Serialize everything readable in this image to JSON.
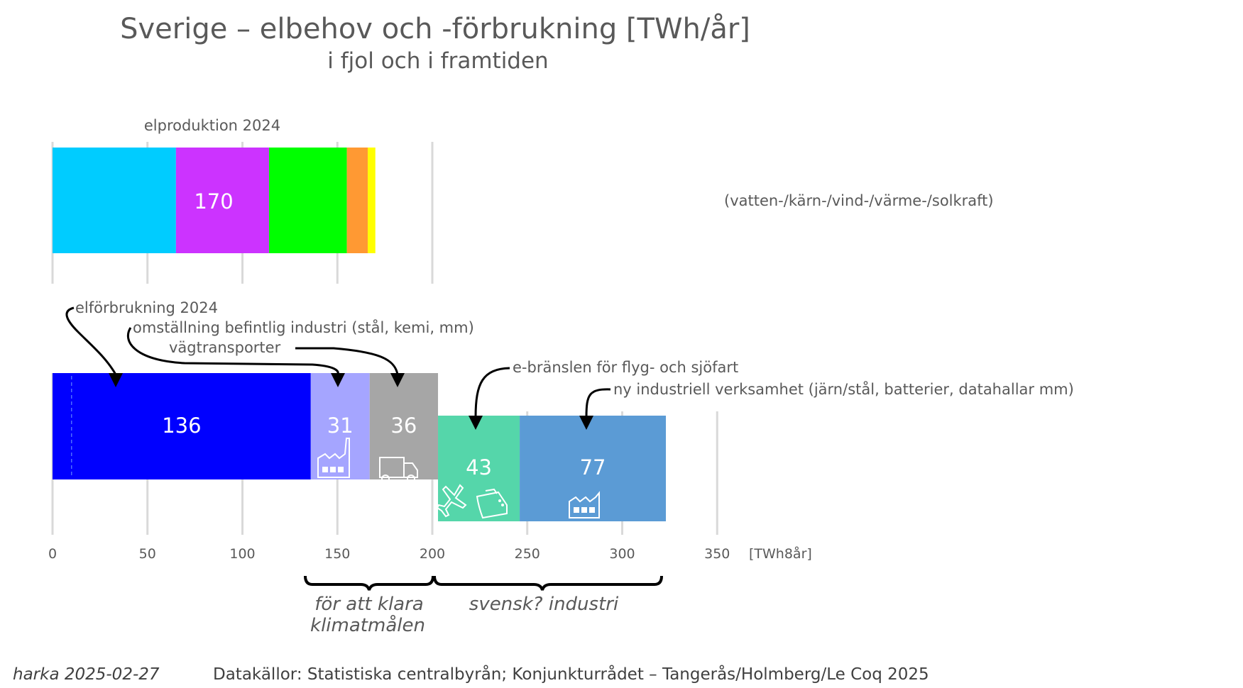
{
  "chart_data": {
    "type": "bar",
    "orientation": "horizontal-stacked",
    "title": "Sverige – elbehov och -förbrukning [TWh/år]",
    "subtitle": "i fjol och i framtiden",
    "xlabel_unit": "[TWh8år]",
    "xlim": [
      0,
      350
    ],
    "xticks": [
      0,
      50,
      100,
      150,
      200,
      250,
      300,
      350
    ],
    "grid": true,
    "production": {
      "label": "elproduktion 2024",
      "total_label": "170",
      "note": "(vatten-/kärn-/vind-/värme-/solkraft)",
      "segments": [
        {
          "name": "vattenkraft",
          "value": 65,
          "color": "#00CCFF"
        },
        {
          "name": "kärnkraft",
          "value": 49,
          "color": "#CC33FF"
        },
        {
          "name": "vindkraft",
          "value": 41,
          "color": "#00FF00"
        },
        {
          "name": "värmekraft",
          "value": 11,
          "color": "#FF9933"
        },
        {
          "name": "solkraft",
          "value": 4,
          "color": "#FFFF00"
        }
      ]
    },
    "consumption_row": {
      "segments": [
        {
          "name": "elförbrukning 2024",
          "value": 136,
          "label": "136",
          "color": "#0000FF",
          "icon": null
        },
        {
          "name": "omställning befintlig industri",
          "value": 31,
          "label": "31",
          "color": "#A5A5FF",
          "icon": "factory-icon"
        },
        {
          "name": "vägtransporter",
          "value": 36,
          "label": "36",
          "color": "#A6A6A6",
          "icon": "truck-icon"
        }
      ],
      "dashed_marker_value": 10
    },
    "future_row": {
      "start": 203,
      "segments": [
        {
          "name": "e-bränslen för flyg- och sjöfart",
          "value": 43,
          "label": "43",
          "color": "#55D6AA",
          "icon": "airplane-ship-icon"
        },
        {
          "name": "ny industriell verksamhet",
          "value": 77,
          "label": "77",
          "color": "#5B9BD5",
          "icon": "factory-icon"
        }
      ]
    },
    "annotations": [
      "elförbrukning 2024",
      "omställning befintlig industri (stål, kemi, mm)",
      "vägtransporter",
      "e-bränslen för flyg- och sjöfart",
      "ny industriell verksamhet (järn/stål, batterier, datahallar mm)"
    ],
    "brackets": [
      {
        "from": 136,
        "to": 203,
        "label_lines": [
          "för att klara",
          "klimatmålen"
        ]
      },
      {
        "from": 203,
        "to": 323,
        "label_lines": [
          "svensk? industri"
        ]
      }
    ]
  },
  "footer": {
    "author_date": "harka 2025-02-27",
    "sources": "Datakällor: Statistiska centralbyrån; Konjunkturrådet – Tangerås/Holmberg/Le Coq 2025"
  }
}
